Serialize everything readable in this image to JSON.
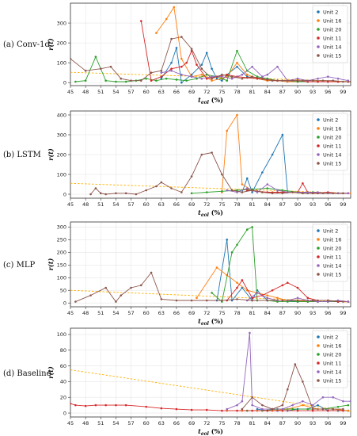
{
  "colors": {
    "Unit 2": "#1f77b4",
    "Unit 16": "#ff7f0e",
    "Unit 20": "#2ca02c",
    "Unit 11": "#d62728",
    "Unit 14": "#9467bd",
    "Unit 15": "#8c564b",
    "trend": "#ffb000"
  },
  "chart_data": [
    {
      "type": "line",
      "panel_label": "(a) Conv-1d",
      "xlabel": "t_eol (%)",
      "ylabel": "r(t)",
      "xlim": [
        45,
        100.5
      ],
      "ylim": [
        -15,
        400
      ],
      "xticks": [
        45,
        48,
        51,
        54,
        57,
        60,
        63,
        66,
        69,
        72,
        75,
        78,
        81,
        84,
        87,
        90,
        93,
        96,
        99
      ],
      "yticks": [
        0,
        100,
        200,
        300
      ],
      "grid": true,
      "legend_position": "top-right",
      "trend_line": {
        "x": [
          45,
          100.5
        ],
        "y": [
          52,
          6
        ]
      },
      "series": [
        {
          "name": "Unit 2",
          "x": [
            63,
            65,
            66,
            67,
            69,
            71,
            72,
            73,
            74,
            75,
            76,
            78,
            80,
            82,
            84,
            86,
            88,
            90,
            92,
            94,
            96,
            98,
            100
          ],
          "y": [
            20,
            100,
            175,
            0,
            40,
            90,
            150,
            70,
            20,
            10,
            40,
            80,
            30,
            20,
            10,
            10,
            5,
            5,
            5,
            5,
            5,
            5,
            5
          ]
        },
        {
          "name": "Unit 16",
          "x": [
            62,
            64,
            65.5,
            67,
            69,
            71,
            73,
            75,
            76,
            78,
            80,
            82,
            84,
            86,
            88,
            90,
            92,
            94,
            96,
            98,
            100
          ],
          "y": [
            250,
            320,
            380,
            120,
            30,
            40,
            10,
            20,
            30,
            100,
            40,
            20,
            10,
            10,
            5,
            5,
            5,
            5,
            5,
            5,
            5
          ]
        },
        {
          "name": "Unit 20",
          "x": [
            46,
            48,
            50,
            52,
            54,
            56,
            58,
            60,
            62,
            64,
            66,
            68,
            70,
            72,
            74,
            76,
            78,
            80,
            82,
            84,
            86,
            88,
            90,
            92,
            94,
            96,
            98,
            100
          ],
          "y": [
            5,
            10,
            130,
            10,
            5,
            5,
            10,
            20,
            10,
            20,
            15,
            10,
            20,
            40,
            30,
            10,
            160,
            60,
            30,
            20,
            10,
            10,
            5,
            5,
            5,
            5,
            5,
            5
          ]
        },
        {
          "name": "Unit 11",
          "x": [
            59,
            61,
            63,
            65,
            67,
            68,
            69,
            70,
            72,
            74,
            76,
            78,
            80,
            82,
            84,
            86,
            88,
            90,
            92,
            94,
            96,
            98,
            100
          ],
          "y": [
            310,
            10,
            30,
            70,
            80,
            100,
            160,
            90,
            20,
            30,
            40,
            30,
            25,
            20,
            15,
            10,
            10,
            10,
            5,
            5,
            5,
            5,
            5
          ]
        },
        {
          "name": "Unit 14",
          "x": [
            63,
            65,
            67,
            69,
            71,
            73,
            75,
            77,
            79,
            81,
            83,
            84,
            86,
            88,
            90,
            92,
            94,
            96,
            98,
            100
          ],
          "y": [
            50,
            60,
            40,
            30,
            20,
            30,
            30,
            20,
            40,
            80,
            30,
            40,
            80,
            10,
            20,
            10,
            20,
            30,
            20,
            10
          ]
        },
        {
          "name": "Unit 15",
          "x": [
            45,
            48,
            51,
            53,
            55,
            57,
            59,
            61,
            63,
            65,
            67,
            69,
            71,
            73,
            75,
            77,
            79,
            81,
            83,
            85,
            87,
            89,
            91,
            93,
            95,
            97,
            99,
            100.5
          ],
          "y": [
            120,
            60,
            70,
            80,
            20,
            10,
            10,
            50,
            60,
            220,
            230,
            170,
            70,
            20,
            40,
            30,
            20,
            30,
            20,
            10,
            10,
            10,
            10,
            10,
            10,
            10,
            5,
            5
          ]
        }
      ]
    },
    {
      "type": "line",
      "panel_label": "(b) LSTM",
      "xlabel": "t_eol (%)",
      "ylabel": "r(t)",
      "xlim": [
        45,
        100.5
      ],
      "ylim": [
        -20,
        420
      ],
      "xticks": [
        45,
        48,
        51,
        54,
        57,
        60,
        63,
        66,
        69,
        72,
        75,
        78,
        81,
        84,
        87,
        90,
        93,
        96,
        99
      ],
      "yticks": [
        0,
        100,
        200,
        300,
        400
      ],
      "grid": true,
      "legend_position": "top-right",
      "trend_line": {
        "x": [
          45,
          100.5
        ],
        "y": [
          55,
          5
        ]
      },
      "series": [
        {
          "name": "Unit 2",
          "x": [
            79,
            80,
            81,
            83,
            85,
            87,
            88,
            90,
            92,
            94,
            96,
            98,
            100
          ],
          "y": [
            10,
            80,
            10,
            110,
            200,
            300,
            10,
            10,
            5,
            5,
            5,
            5,
            5
          ]
        },
        {
          "name": "Unit 16",
          "x": [
            75,
            76,
            78,
            79,
            81,
            83,
            85,
            87,
            89,
            91,
            93,
            95,
            97,
            99,
            100.5
          ],
          "y": [
            10,
            320,
            400,
            50,
            20,
            10,
            10,
            10,
            10,
            5,
            5,
            5,
            5,
            5,
            5
          ]
        },
        {
          "name": "Unit 20",
          "x": [
            69,
            72,
            75,
            78,
            81,
            84,
            87,
            90,
            93,
            96,
            99
          ],
          "y": [
            5,
            10,
            15,
            20,
            25,
            30,
            20,
            10,
            10,
            5,
            5
          ]
        },
        {
          "name": "Unit 11",
          "x": [
            80,
            82,
            84,
            86,
            88,
            90,
            91,
            92,
            94,
            96,
            98,
            100
          ],
          "y": [
            20,
            15,
            10,
            10,
            10,
            10,
            55,
            10,
            5,
            10,
            5,
            5
          ]
        },
        {
          "name": "Unit 14",
          "x": [
            76,
            78,
            80,
            82,
            84,
            86,
            88,
            90,
            92,
            94,
            96,
            98,
            100
          ],
          "y": [
            20,
            10,
            30,
            10,
            50,
            20,
            10,
            10,
            10,
            10,
            5,
            5,
            5
          ]
        },
        {
          "name": "Unit 15",
          "x": [
            49,
            50,
            51,
            52,
            54,
            56,
            58,
            60,
            62,
            63,
            65,
            67,
            69,
            71,
            73,
            75,
            77,
            79,
            81,
            83,
            85,
            87,
            89,
            91,
            93,
            95,
            97,
            99
          ],
          "y": [
            0,
            30,
            5,
            0,
            5,
            5,
            0,
            20,
            40,
            60,
            30,
            10,
            90,
            200,
            210,
            100,
            20,
            10,
            20,
            10,
            5,
            5,
            10,
            5,
            5,
            5,
            5,
            5
          ]
        }
      ]
    },
    {
      "type": "line",
      "panel_label": "(c) MLP",
      "xlabel": "t_eol (%)",
      "ylabel": "r(t)",
      "xlim": [
        45,
        100.5
      ],
      "ylim": [
        -15,
        320
      ],
      "xticks": [
        45,
        48,
        51,
        54,
        57,
        60,
        63,
        66,
        69,
        72,
        75,
        78,
        81,
        84,
        87,
        90,
        93,
        96,
        99
      ],
      "yticks": [
        0,
        50,
        100,
        150,
        200,
        250,
        300
      ],
      "grid": true,
      "legend_position": "top-right",
      "trend_line": {
        "x": [
          45,
          100.5
        ],
        "y": [
          50,
          3
        ]
      },
      "series": [
        {
          "name": "Unit 2",
          "x": [
            74,
            76,
            77,
            79,
            81,
            82,
            84,
            86,
            88,
            90,
            92,
            94,
            96,
            98,
            100
          ],
          "y": [
            10,
            250,
            10,
            60,
            10,
            50,
            10,
            10,
            10,
            5,
            5,
            5,
            5,
            5,
            5
          ]
        },
        {
          "name": "Unit 16",
          "x": [
            70,
            74,
            76,
            78,
            80,
            82,
            84,
            86,
            88,
            90,
            92,
            94,
            96,
            98,
            100
          ],
          "y": [
            20,
            140,
            110,
            80,
            50,
            40,
            30,
            20,
            10,
            10,
            5,
            5,
            5,
            5,
            5
          ]
        },
        {
          "name": "Unit 20",
          "x": [
            73,
            75,
            77,
            78,
            80,
            81,
            82,
            84,
            86,
            88,
            90,
            92,
            94,
            96,
            98,
            100
          ],
          "y": [
            40,
            5,
            200,
            230,
            290,
            300,
            10,
            10,
            5,
            5,
            5,
            5,
            5,
            5,
            5,
            5
          ]
        },
        {
          "name": "Unit 11",
          "x": [
            76,
            78,
            79,
            81,
            83,
            85,
            87,
            88,
            90,
            92,
            94,
            96,
            98,
            100
          ],
          "y": [
            10,
            60,
            90,
            20,
            30,
            50,
            70,
            80,
            60,
            20,
            10,
            10,
            5,
            5
          ]
        },
        {
          "name": "Unit 14",
          "x": [
            80,
            82,
            84,
            86,
            88,
            90,
            92,
            94,
            96,
            98,
            100
          ],
          "y": [
            10,
            40,
            20,
            10,
            10,
            20,
            10,
            5,
            5,
            10,
            5
          ]
        },
        {
          "name": "Unit 15",
          "x": [
            46,
            49,
            52,
            54,
            55,
            57,
            59,
            61,
            63,
            66,
            69,
            72,
            75,
            78,
            81,
            84,
            87,
            90,
            93,
            96,
            99
          ],
          "y": [
            5,
            30,
            60,
            5,
            30,
            60,
            70,
            120,
            15,
            10,
            10,
            10,
            10,
            15,
            10,
            10,
            10,
            10,
            10,
            10,
            5
          ]
        }
      ]
    },
    {
      "type": "line",
      "panel_label": "(d) Baseline",
      "xlabel": "t_eol (%)",
      "ylabel": "r(t)",
      "xlim": [
        45,
        100.5
      ],
      "ylim": [
        -5,
        108
      ],
      "xticks": [
        45,
        48,
        51,
        54,
        57,
        60,
        63,
        66,
        69,
        72,
        75,
        78,
        81,
        84,
        87,
        90,
        93,
        96,
        99
      ],
      "yticks": [
        0,
        20,
        40,
        60,
        80,
        100
      ],
      "grid": true,
      "legend_position": "top-right",
      "trend_line": {
        "x": [
          45,
          100.5
        ],
        "y": [
          55,
          2
        ]
      },
      "series": [
        {
          "name": "Unit 2",
          "x": [
            82,
            84,
            86,
            88,
            90,
            92,
            94,
            96,
            98,
            100
          ],
          "y": [
            5,
            3,
            3,
            3,
            5,
            5,
            10,
            3,
            3,
            3
          ]
        },
        {
          "name": "Unit 16",
          "x": [
            76,
            79,
            82,
            85,
            88,
            91,
            94,
            97,
            100
          ],
          "y": [
            3,
            3,
            3,
            3,
            5,
            10,
            5,
            5,
            3
          ]
        },
        {
          "name": "Unit 20",
          "x": [
            80,
            83,
            86,
            89,
            92,
            95,
            98,
            100
          ],
          "y": [
            3,
            3,
            5,
            5,
            5,
            5,
            8,
            10
          ]
        },
        {
          "name": "Unit 11",
          "x": [
            45,
            46,
            48,
            50,
            52,
            54,
            56,
            60,
            63,
            66,
            69,
            72,
            75,
            78,
            81,
            84,
            87,
            90,
            93,
            96,
            99
          ],
          "y": [
            12,
            10,
            9,
            10,
            10,
            10,
            10,
            8,
            6,
            5,
            4,
            4,
            3,
            3,
            3,
            3,
            3,
            3,
            3,
            3,
            3
          ]
        },
        {
          "name": "Unit 14",
          "x": [
            76,
            78,
            79,
            80.5,
            81,
            83,
            85,
            87,
            89,
            91,
            93,
            95,
            97,
            99,
            100.5
          ],
          "y": [
            5,
            10,
            15,
            102,
            10,
            5,
            5,
            5,
            10,
            15,
            10,
            20,
            20,
            15,
            15
          ]
        },
        {
          "name": "Unit 15",
          "x": [
            79,
            81,
            83,
            85,
            87,
            88,
            89.5,
            91,
            93,
            95,
            97,
            99
          ],
          "y": [
            5,
            20,
            10,
            5,
            10,
            30,
            62,
            40,
            5,
            5,
            5,
            5
          ]
        }
      ]
    }
  ]
}
